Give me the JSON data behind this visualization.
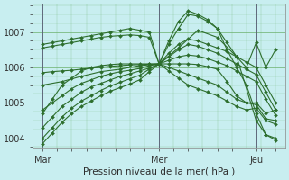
{
  "title": "",
  "xlabel": "Pression niveau de la mer( hPa )",
  "ylabel": "",
  "bg_color": "#c8eef0",
  "grid_color": "#6ab06a",
  "line_color": "#2d6e2d",
  "ylim": [
    1003.7,
    1007.8
  ],
  "xlim": [
    -2,
    50
  ],
  "xtick_positions": [
    0,
    24,
    44
  ],
  "xtick_labels": [
    "Mar",
    "Mer",
    "Jeu"
  ],
  "ytick_positions": [
    1004,
    1005,
    1006,
    1007
  ],
  "vlines": [
    0,
    24,
    44
  ],
  "series": [
    {
      "x": [
        0,
        2,
        4,
        6,
        8,
        10,
        12,
        14,
        16,
        18,
        20,
        22,
        24,
        26,
        28,
        30,
        32,
        34,
        36,
        38,
        40,
        42,
        44,
        46,
        48
      ],
      "y": [
        1004.7,
        1005.1,
        1005.5,
        1005.7,
        1005.9,
        1006.0,
        1006.05,
        1006.08,
        1006.1,
        1006.1,
        1006.1,
        1006.1,
        1006.1,
        1006.65,
        1007.1,
        1007.5,
        1007.45,
        1007.3,
        1007.1,
        1006.7,
        1006.3,
        1006.0,
        1006.7,
        1006.0,
        1006.5
      ]
    },
    {
      "x": [
        0,
        2,
        4,
        6,
        8,
        10,
        12,
        14,
        16,
        18,
        20,
        22,
        24,
        26,
        28,
        30,
        32,
        34,
        36,
        38,
        40,
        42,
        44,
        46,
        48
      ],
      "y": [
        1006.65,
        1006.7,
        1006.75,
        1006.8,
        1006.85,
        1006.9,
        1006.95,
        1007.0,
        1007.05,
        1007.1,
        1007.05,
        1007.0,
        1006.1,
        1006.0,
        1005.9,
        1005.8,
        1005.7,
        1005.6,
        1005.5,
        1005.3,
        1005.1,
        1005.0,
        1004.95,
        1004.55,
        1004.5
      ]
    },
    {
      "x": [
        0,
        2,
        4,
        6,
        8,
        10,
        12,
        14,
        16,
        18,
        20,
        22,
        24,
        26,
        28,
        30,
        32,
        34,
        36,
        38,
        40,
        42,
        44,
        46,
        48
      ],
      "y": [
        1006.55,
        1006.6,
        1006.65,
        1006.7,
        1006.75,
        1006.8,
        1006.85,
        1006.88,
        1006.9,
        1006.92,
        1006.9,
        1006.85,
        1006.1,
        1005.9,
        1005.7,
        1005.5,
        1005.4,
        1005.3,
        1005.2,
        1005.05,
        1004.9,
        1004.8,
        1004.85,
        1004.5,
        1004.4
      ]
    },
    {
      "x": [
        0,
        2,
        4,
        6,
        8,
        10,
        12,
        14,
        16,
        18,
        20,
        22,
        24,
        26,
        28,
        30,
        32,
        34,
        36,
        38,
        40,
        42,
        44,
        46,
        48
      ],
      "y": [
        1004.8,
        1005.0,
        1005.2,
        1005.4,
        1005.55,
        1005.65,
        1005.75,
        1005.82,
        1005.88,
        1005.92,
        1005.97,
        1006.05,
        1006.1,
        1006.4,
        1006.65,
        1006.8,
        1006.75,
        1006.65,
        1006.55,
        1006.45,
        1006.3,
        1006.15,
        1006.0,
        1005.5,
        1005.0
      ]
    },
    {
      "x": [
        0,
        2,
        4,
        6,
        8,
        10,
        12,
        14,
        16,
        18,
        20,
        22,
        24,
        26,
        28,
        30,
        32,
        34,
        36,
        38,
        40,
        42,
        44,
        46,
        48
      ],
      "y": [
        1004.3,
        1004.6,
        1004.9,
        1005.1,
        1005.3,
        1005.45,
        1005.55,
        1005.65,
        1005.75,
        1005.82,
        1005.9,
        1005.98,
        1006.1,
        1006.3,
        1006.5,
        1006.65,
        1006.6,
        1006.5,
        1006.4,
        1006.25,
        1006.1,
        1005.95,
        1005.8,
        1005.3,
        1004.8
      ]
    },
    {
      "x": [
        0,
        2,
        4,
        6,
        8,
        10,
        12,
        14,
        16,
        18,
        20,
        22,
        24,
        26,
        28,
        30,
        32,
        34,
        36,
        38,
        40,
        42,
        44,
        46,
        48
      ],
      "y": [
        1004.0,
        1004.3,
        1004.6,
        1004.85,
        1005.05,
        1005.2,
        1005.35,
        1005.48,
        1005.58,
        1005.68,
        1005.78,
        1005.95,
        1006.1,
        1006.2,
        1006.3,
        1006.35,
        1006.32,
        1006.25,
        1006.15,
        1006.05,
        1005.9,
        1005.75,
        1005.6,
        1005.1,
        1004.65
      ]
    },
    {
      "x": [
        0,
        2,
        4,
        6,
        8,
        10,
        12,
        14,
        16,
        18,
        20,
        22,
        24,
        26,
        28,
        30,
        32,
        34,
        36,
        38,
        40,
        42,
        44,
        46,
        48
      ],
      "y": [
        1003.85,
        1004.15,
        1004.45,
        1004.7,
        1004.9,
        1005.05,
        1005.2,
        1005.33,
        1005.43,
        1005.53,
        1005.65,
        1005.88,
        1006.1,
        1006.1,
        1006.1,
        1006.1,
        1006.08,
        1006.02,
        1005.95,
        1005.6,
        1005.2,
        1005.0,
        1005.0,
        1004.7,
        1004.8
      ]
    },
    {
      "x": [
        0,
        2,
        4,
        6,
        8,
        10,
        12,
        14,
        16,
        18,
        20,
        22,
        24,
        26,
        28,
        30,
        32,
        34,
        36,
        38,
        40,
        42,
        44,
        46,
        48
      ],
      "y": [
        1005.85,
        1005.88,
        1005.9,
        1005.92,
        1005.95,
        1005.98,
        1006.0,
        1006.03,
        1006.05,
        1006.07,
        1006.08,
        1006.09,
        1006.1,
        1006.75,
        1007.3,
        1007.6,
        1007.5,
        1007.35,
        1007.1,
        1006.5,
        1006.0,
        1005.5,
        1004.7,
        1004.1,
        1004.0
      ]
    },
    {
      "x": [
        0,
        4,
        8,
        12,
        16,
        20,
        24,
        28,
        32,
        36,
        40,
        44,
        46,
        48
      ],
      "y": [
        1005.5,
        1005.6,
        1005.75,
        1005.88,
        1005.95,
        1006.05,
        1006.1,
        1006.55,
        1007.05,
        1006.85,
        1006.3,
        1004.5,
        1004.1,
        1003.95
      ]
    }
  ]
}
